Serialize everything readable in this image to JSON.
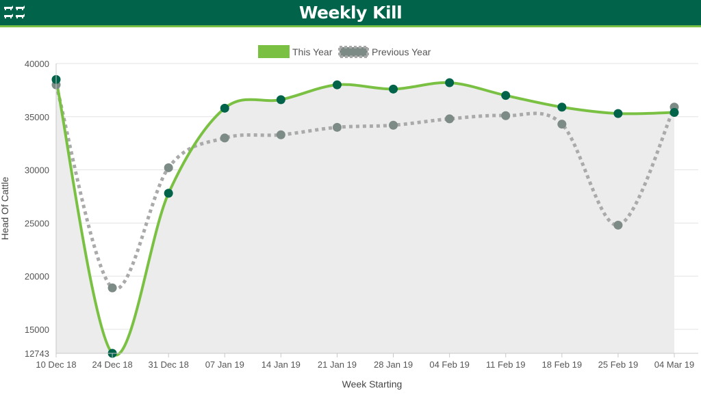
{
  "header": {
    "title": "Weekly Kill",
    "logo_icon": "cattle-logo-icon"
  },
  "colors": {
    "header_bg": "#00634a",
    "header_accent": "#7ac143",
    "this_year_line": "#7ac143",
    "this_year_point": "#00634a",
    "previous_year_line": "#a9aaa9",
    "previous_year_point": "#7d8b87",
    "area_fill": "#ececec"
  },
  "chart_data": {
    "type": "line",
    "title": "",
    "xlabel": "Week Starting",
    "ylabel": "Head Of Cattle",
    "categories": [
      "10 Dec 18",
      "24 Dec 18",
      "31 Dec 18",
      "07 Jan 19",
      "14 Jan 19",
      "21 Jan 19",
      "28 Jan 19",
      "04 Feb 19",
      "11 Feb 19",
      "18 Feb 19",
      "25 Feb 19",
      "04 Mar 19"
    ],
    "y_ticks": [
      12743,
      15000,
      20000,
      25000,
      30000,
      35000,
      40000
    ],
    "ylim": [
      12743,
      40000
    ],
    "grid": true,
    "legend_position": "top-center",
    "series": [
      {
        "name": "This Year",
        "style": "solid",
        "values": [
          38500,
          12743,
          27800,
          35800,
          36600,
          38000,
          37600,
          38200,
          37000,
          35900,
          35300,
          35400
        ]
      },
      {
        "name": "Previous Year",
        "style": "dotted",
        "values": [
          38000,
          18900,
          30200,
          33000,
          33300,
          34000,
          34200,
          34800,
          35100,
          34300,
          24800,
          35900
        ]
      }
    ]
  }
}
